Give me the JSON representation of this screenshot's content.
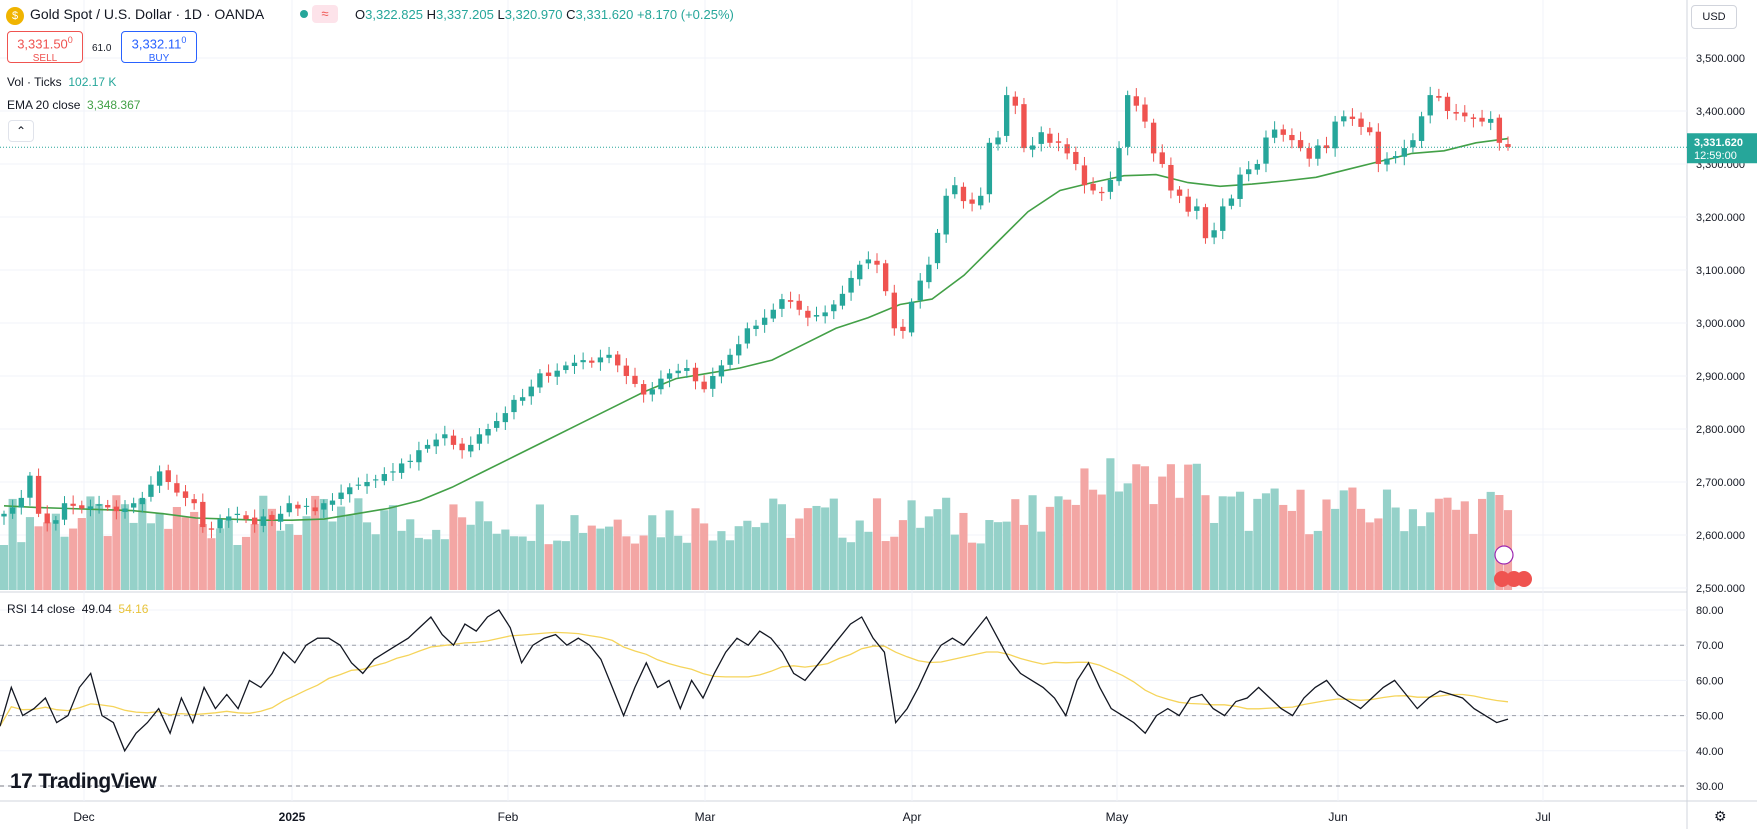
{
  "header": {
    "symbol_title": "Gold Spot / U.S. Dollar · 1D · OANDA",
    "ohlc": [
      {
        "k": "O",
        "v": "3,322.825"
      },
      {
        "k": "H",
        "v": "3,337.205"
      },
      {
        "k": "L",
        "v": "3,320.970"
      },
      {
        "k": "C",
        "v": "3,331.620"
      },
      {
        "k": "",
        "v": "+8.170 (+0.25%)"
      }
    ]
  },
  "trade": {
    "sell_price": "3,331.50",
    "sell_sup": "0",
    "sell_label": "SELL",
    "spread": "61.0",
    "buy_price": "3,332.11",
    "buy_sup": "0",
    "buy_label": "BUY"
  },
  "indicators": {
    "volume": {
      "name": "Vol · Ticks",
      "value": "102.17 K"
    },
    "ema": {
      "name": "EMA 20 close",
      "value": "3,348.367"
    },
    "rsi": {
      "name": "RSI 14 close",
      "value": "49.04",
      "ma_value": "54.16"
    }
  },
  "currency": "USD",
  "price_label": {
    "value": "3,331.620",
    "countdown": "12:59:00"
  },
  "brand": "TradingView",
  "colors": {
    "up": "#26a69a",
    "down": "#ef5350",
    "ema": "#43a047",
    "rsi": "#131722",
    "rsi_ma": "#f5d45a",
    "vol_up": "#95d1c9",
    "vol_down": "#f3a6a4"
  },
  "chart_data": {
    "type": "candlestick",
    "price_axis": {
      "ticks": [
        "3,500.000",
        "3,400.000",
        "3,300.000",
        "3,200.000",
        "3,100.000",
        "3,000.000",
        "2,900.000",
        "2,800.000",
        "2,700.000",
        "2,600.000",
        "2,500.000"
      ],
      "range": [
        2500,
        3500
      ]
    },
    "rsi_axis": {
      "ticks": [
        "80.00",
        "70.00",
        "60.00",
        "50.00",
        "40.00",
        "30.00"
      ],
      "levels": [
        70,
        50,
        30
      ]
    },
    "time_axis": [
      "Dec",
      "2025",
      "Feb",
      "Mar",
      "Apr",
      "May",
      "Jun",
      "Jul"
    ],
    "closes": [
      2640,
      2652,
      2670,
      2712,
      2640,
      2622,
      2628,
      2660,
      2655,
      2650,
      2654,
      2658,
      2652,
      2645,
      2650,
      2660,
      2670,
      2695,
      2720,
      2700,
      2680,
      2670,
      2660,
      2615,
      2610,
      2630,
      2635,
      2640,
      2630,
      2620,
      2635,
      2628,
      2640,
      2660,
      2650,
      2655,
      2645,
      2660,
      2665,
      2680,
      2690,
      2695,
      2700,
      2705,
      2715,
      2720,
      2735,
      2740,
      2760,
      2770,
      2780,
      2790,
      2770,
      2760,
      2770,
      2790,
      2800,
      2815,
      2830,
      2855,
      2860,
      2880,
      2905,
      2900,
      2910,
      2920,
      2925,
      2930,
      2925,
      2935,
      2940,
      2920,
      2900,
      2885,
      2865,
      2875,
      2895,
      2905,
      2910,
      2915,
      2890,
      2875,
      2900,
      2920,
      2940,
      2960,
      2990,
      2995,
      3010,
      3025,
      3045,
      3040,
      3025,
      3010,
      3015,
      3020,
      3035,
      3055,
      3085,
      3110,
      3120,
      3110,
      3060,
      2990,
      2985,
      3040,
      3080,
      3110,
      3170,
      3240,
      3260,
      3230,
      3225,
      3240,
      3340,
      3350,
      3430,
      3410,
      3330,
      3335,
      3360,
      3340,
      3340,
      3320,
      3300,
      3260,
      3250,
      3245,
      3270,
      3330,
      3430,
      3410,
      3380,
      3320,
      3300,
      3250,
      3240,
      3210,
      3220,
      3160,
      3175,
      3220,
      3235,
      3280,
      3290,
      3300,
      3350,
      3365,
      3355,
      3345,
      3330,
      3310,
      3335,
      3330,
      3380,
      3390,
      3385,
      3370,
      3360,
      3300,
      3310,
      3315,
      3330,
      3345,
      3390,
      3430,
      3425,
      3400,
      3395,
      3390,
      3385,
      3380,
      3385,
      3340,
      3332
    ],
    "ema20": [
      2655,
      2652,
      2650,
      2648,
      2646,
      2640,
      2632,
      2630,
      2628,
      2628,
      2630,
      2640,
      2650,
      2665,
      2690,
      2720,
      2750,
      2780,
      2810,
      2840,
      2870,
      2895,
      2905,
      2915,
      2930,
      2960,
      2990,
      3010,
      3035,
      3045,
      3090,
      3150,
      3210,
      3250,
      3265,
      3278,
      3280,
      3265,
      3258,
      3262,
      3268,
      3275,
      3290,
      3305,
      3320,
      3325,
      3340,
      3348
    ],
    "volume_percent_of_panel": "volume bars occupy the lower part of the price panel",
    "rsi": [
      47,
      58,
      50,
      52,
      55,
      48,
      50,
      58,
      62,
      50,
      48,
      40,
      45,
      48,
      52,
      45,
      55,
      48,
      58,
      52,
      56,
      52,
      60,
      58,
      62,
      68,
      65,
      70,
      72,
      72,
      70,
      65,
      62,
      66,
      68,
      70,
      72,
      75,
      78,
      73,
      70,
      76,
      74,
      78,
      80,
      75,
      65,
      70,
      72,
      73,
      70,
      72,
      70,
      66,
      58,
      50,
      58,
      65,
      58,
      60,
      52,
      60,
      55,
      62,
      68,
      72,
      70,
      74,
      72,
      68,
      62,
      60,
      64,
      68,
      72,
      76,
      78,
      72,
      68,
      48,
      52,
      58,
      65,
      70,
      72,
      70,
      74,
      78,
      72,
      66,
      62,
      60,
      58,
      55,
      50,
      60,
      65,
      58,
      52,
      50,
      48,
      45,
      50,
      52,
      50,
      55,
      56,
      52,
      50,
      54,
      55,
      58,
      55,
      52,
      50,
      55,
      58,
      60,
      56,
      54,
      52,
      55,
      58,
      60,
      56,
      52,
      55,
      57,
      56,
      55,
      52,
      50,
      48,
      49
    ]
  }
}
